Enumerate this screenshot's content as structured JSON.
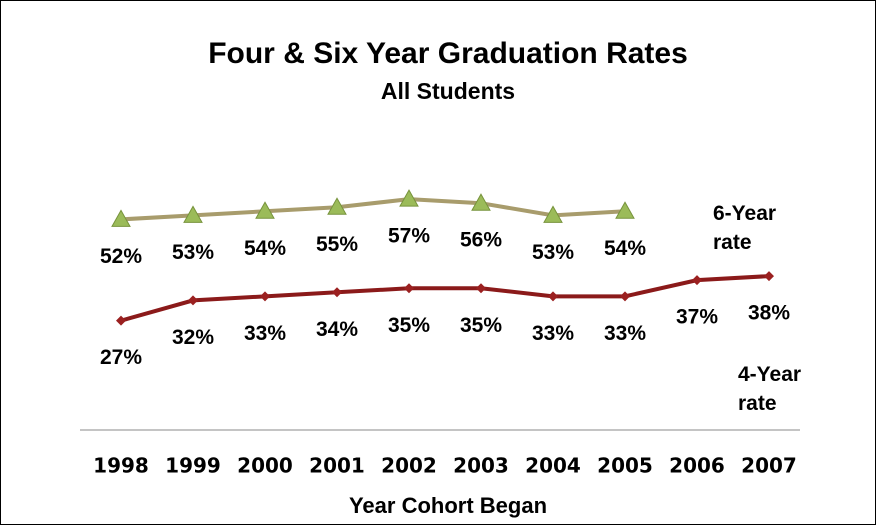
{
  "chart_data": {
    "type": "line",
    "title": "Four & Six Year Graduation Rates",
    "subtitle": "All Students",
    "xlabel": "Year Cohort Began",
    "categories": [
      "1998",
      "1999",
      "2000",
      "2001",
      "2002",
      "2003",
      "2004",
      "2005",
      "2006",
      "2007"
    ],
    "ylim": [
      0,
      60
    ],
    "series": [
      {
        "name": "6-Year rate",
        "color": "#a89c6c",
        "marker_color": "#9bbb59",
        "values": [
          52,
          53,
          54,
          55,
          57,
          56,
          53,
          54,
          null,
          null
        ],
        "value_labels": [
          "52%",
          "53%",
          "54%",
          "55%",
          "57%",
          "56%",
          "53%",
          "54%",
          null,
          null
        ]
      },
      {
        "name": "4-Year rate",
        "color": "#8b1a1a",
        "marker_color": "#9b2020",
        "values": [
          27,
          32,
          33,
          34,
          35,
          35,
          33,
          33,
          37,
          38
        ],
        "value_labels": [
          "27%",
          "32%",
          "33%",
          "34%",
          "35%",
          "35%",
          "33%",
          "33%",
          "37%",
          "38%"
        ]
      }
    ]
  }
}
